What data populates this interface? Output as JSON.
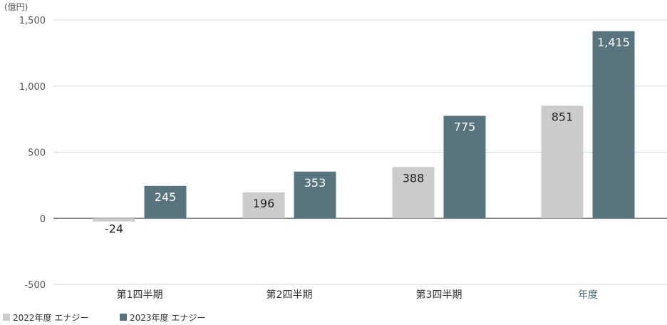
{
  "chart_data": {
    "type": "bar",
    "unit_label": "(億円)",
    "categories": [
      "第1四半期",
      "第2四半期",
      "第3四半期",
      "年度"
    ],
    "highlight_category": "年度",
    "series": [
      {
        "name": "2022年度 エナジー",
        "values": [
          -24,
          196,
          388,
          851
        ],
        "labels": [
          "-24",
          "196",
          "388",
          "851"
        ],
        "color": "#cccccc",
        "label_color": "#222222"
      },
      {
        "name": "2023年度 エナジー",
        "values": [
          245,
          353,
          775,
          1415
        ],
        "labels": [
          "245",
          "353",
          "775",
          "1,415"
        ],
        "color": "#58747f",
        "label_color": "#ffffff"
      }
    ],
    "y_ticks": [
      -500,
      0,
      500,
      1000,
      1500
    ],
    "y_tick_labels": [
      "-500",
      "0",
      "500",
      "1,000",
      "1,500"
    ],
    "ylim": [
      -500,
      1500
    ],
    "grid": true,
    "legend_position": "bottom-left",
    "colors": {
      "grid": "#d9d9d9",
      "zero_line": "#666666",
      "highlight_text": "#4f6e7c"
    }
  }
}
